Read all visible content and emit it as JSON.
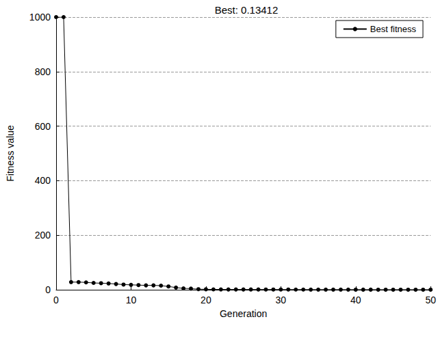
{
  "chart_data": {
    "type": "line",
    "title": "Best: 0.13412",
    "x_label": "Generation",
    "y_label": "Fitness value",
    "x": [
      0,
      1,
      2,
      3,
      4,
      5,
      6,
      7,
      8,
      9,
      10,
      11,
      12,
      13,
      14,
      15,
      16,
      17,
      18,
      19,
      20,
      21,
      22,
      23,
      24,
      25,
      26,
      27,
      28,
      29,
      30,
      31,
      32,
      33,
      34,
      35,
      36,
      37,
      38,
      39,
      40,
      41,
      42,
      43,
      44,
      45,
      46,
      47,
      48,
      49,
      50
    ],
    "series": [
      {
        "name": "Best fitness",
        "color": "#000000",
        "marker": "circle",
        "line_style": "solid",
        "values": [
          1000,
          1000,
          28,
          28,
          27,
          25,
          24,
          23,
          21,
          19,
          18,
          17,
          16,
          16,
          15,
          12,
          8,
          5,
          4,
          2,
          1.5,
          1.2,
          1.1,
          1,
          1,
          1,
          0.9,
          0.9,
          0.8,
          0.8,
          0.7,
          0.7,
          0.6,
          0.6,
          0.5,
          0.5,
          0.5,
          0.4,
          0.4,
          0.4,
          0.3,
          0.3,
          0.3,
          0.2,
          0.2,
          0.2,
          0.2,
          0.2,
          0.15,
          0.14,
          0.13412
        ]
      }
    ],
    "xlim": [
      0,
      50
    ],
    "xticks": [
      0,
      10,
      20,
      30,
      40,
      50
    ],
    "ylim": [
      0,
      1000
    ],
    "yticks": [
      0,
      200,
      400,
      600,
      800,
      1000
    ],
    "grid": "y",
    "legend": "upper right"
  }
}
